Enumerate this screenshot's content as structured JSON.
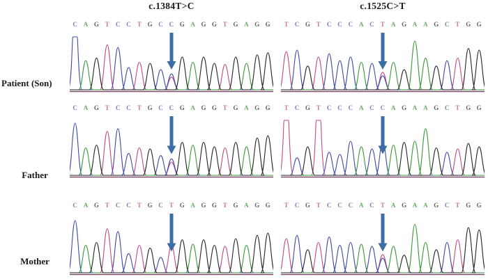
{
  "figure": {
    "columns": [
      {
        "title": "c.1384T>C"
      },
      {
        "title": "c.1525C>T"
      }
    ],
    "rows": [
      {
        "label": "Patient (Son)"
      },
      {
        "label": "Father"
      },
      {
        "label": "Mother"
      }
    ]
  },
  "colors": {
    "bases": {
      "A": "#3f9b3f",
      "C": "#5560ae",
      "G": "#3a3a3a",
      "T": "#c2527e"
    },
    "traces": {
      "A": "#3a9a3a",
      "C": "#3f4ba8",
      "G": "#262626",
      "T": "#c44b82"
    },
    "arrow": "#3d6da4",
    "baseline": "#6b2d52"
  },
  "chart_data": [
    {
      "type": "line",
      "panel": "chromatogram",
      "row_label": "Patient (Son)",
      "column_title": "c.1384T>C",
      "sequence": "CAGTCCTGCCGAGGTGAGG",
      "peak_heights": [
        1.0,
        0.55,
        0.6,
        0.85,
        0.8,
        0.42,
        0.52,
        0.5,
        0.38,
        0.3,
        0.62,
        0.52,
        0.62,
        0.5,
        0.48,
        0.62,
        0.5,
        0.66,
        0.7
      ],
      "arrow_index": 9,
      "het_secondary": "T",
      "genotype_at_arrow": "C/T heterozygous"
    },
    {
      "type": "line",
      "panel": "chromatogram",
      "row_label": "Patient (Son)",
      "column_title": "c.1525C>T",
      "sequence": "TCGTCCCACTAGAAGCTGG",
      "peak_heights": [
        0.72,
        0.75,
        0.45,
        0.62,
        0.68,
        0.55,
        0.62,
        0.52,
        0.5,
        0.33,
        0.52,
        0.38,
        0.92,
        0.6,
        0.45,
        0.55,
        0.6,
        0.78,
        0.75
      ],
      "arrow_index": 9,
      "het_secondary": "C",
      "genotype_at_arrow": "T/C heterozygous"
    },
    {
      "type": "line",
      "panel": "chromatogram",
      "row_label": "Father",
      "column_title": "c.1384T>C",
      "sequence": "CAGTCCTGCCGAGGTGAGG",
      "peak_heights": [
        0.95,
        0.5,
        0.55,
        0.8,
        0.85,
        0.4,
        0.5,
        0.48,
        0.36,
        0.3,
        0.6,
        0.55,
        0.6,
        0.52,
        0.5,
        0.6,
        0.52,
        0.68,
        0.72
      ],
      "arrow_index": 9,
      "het_secondary": "T",
      "genotype_at_arrow": "C/T heterozygous"
    },
    {
      "type": "line",
      "panel": "chromatogram",
      "row_label": "Father",
      "column_title": "c.1525C>T",
      "sequence": "TCGTCCCACCAGAAGCTGG",
      "peak_heights": [
        1.0,
        0.32,
        0.52,
        1.0,
        0.42,
        0.38,
        0.62,
        0.52,
        0.48,
        0.62,
        0.55,
        0.6,
        0.62,
        0.85,
        0.5,
        0.42,
        0.48,
        0.58,
        0.52
      ],
      "arrow_index": 9,
      "het_secondary": null,
      "genotype_at_arrow": "C wild type"
    },
    {
      "type": "line",
      "panel": "chromatogram",
      "row_label": "Mother",
      "column_title": "c.1384T>C",
      "sequence": "CAGTCCTGCTGAGGTGAGG",
      "peak_heights": [
        0.95,
        0.5,
        0.55,
        0.8,
        0.75,
        0.35,
        0.5,
        0.45,
        0.28,
        0.5,
        0.6,
        0.52,
        0.6,
        0.5,
        0.48,
        0.62,
        0.5,
        0.68,
        0.72
      ],
      "arrow_index": 9,
      "het_secondary": null,
      "genotype_at_arrow": "T wild type"
    },
    {
      "type": "line",
      "panel": "chromatogram",
      "row_label": "Mother",
      "column_title": "c.1525C>T",
      "sequence": "TCGTCCCACTAGAAGCTGG",
      "peak_heights": [
        0.62,
        0.68,
        0.42,
        0.55,
        0.65,
        0.5,
        0.55,
        0.52,
        0.48,
        0.33,
        0.48,
        0.32,
        0.88,
        0.55,
        0.42,
        0.55,
        0.6,
        0.82,
        0.78
      ],
      "arrow_index": 9,
      "het_secondary": "C",
      "genotype_at_arrow": "T/C heterozygous"
    }
  ]
}
